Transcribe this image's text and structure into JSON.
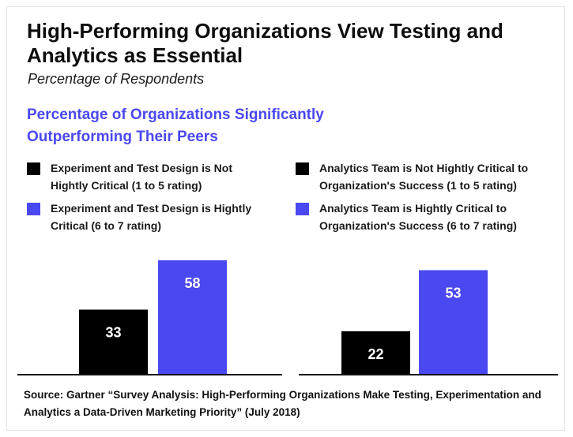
{
  "colors": {
    "not_critical": "#000000",
    "critical": "#4a48f0",
    "heading": "#4a48f0"
  },
  "title": "High-Performing Organizations View Testing and Analytics as Essential",
  "subtitle": "Percentage of Respondents",
  "heading": "Percentage of Organizations Significantly Outperforming Their Peers",
  "legend_left": [
    {
      "label": "Experiment and Test Design is Not Hightly Critical (1 to 5 rating)",
      "color": "#000000"
    },
    {
      "label": "Experiment and Test Design is Hightly Critical (6 to 7 rating)",
      "color": "#4a48f0"
    }
  ],
  "legend_right": [
    {
      "label": "Analytics Team is Not Hightly Critical to Organization's Success (1 to 5 rating)",
      "color": "#000000"
    },
    {
      "label": "Analytics Team is Hightly Critical to Organization's Success (6 to 7 rating)",
      "color": "#4a48f0"
    }
  ],
  "chart_data": [
    {
      "type": "bar",
      "categories": [
        "Experiment and Test Design is Not Hightly Critical (1 to 5 rating)",
        "Experiment and Test Design is Hightly Critical (6 to 7 rating)"
      ],
      "values": [
        33,
        58
      ],
      "colors": [
        "#000000",
        "#4a48f0"
      ],
      "ylim": [
        0,
        60
      ],
      "grid": false,
      "legend": "top"
    },
    {
      "type": "bar",
      "categories": [
        "Analytics Team is Not Hightly Critical to Organization's Success (1 to 5 rating)",
        "Analytics Team is Hightly Critical to Organization's Success (6 to 7 rating)"
      ],
      "values": [
        22,
        53
      ],
      "colors": [
        "#000000",
        "#4a48f0"
      ],
      "ylim": [
        0,
        60
      ],
      "grid": false,
      "legend": "top"
    }
  ],
  "source": "Source: Gartner “Survey Analysis: High-Performing Organizations Make Testing, Experimentation and Analytics a Data-Driven Marketing Priority” (July 2018)"
}
